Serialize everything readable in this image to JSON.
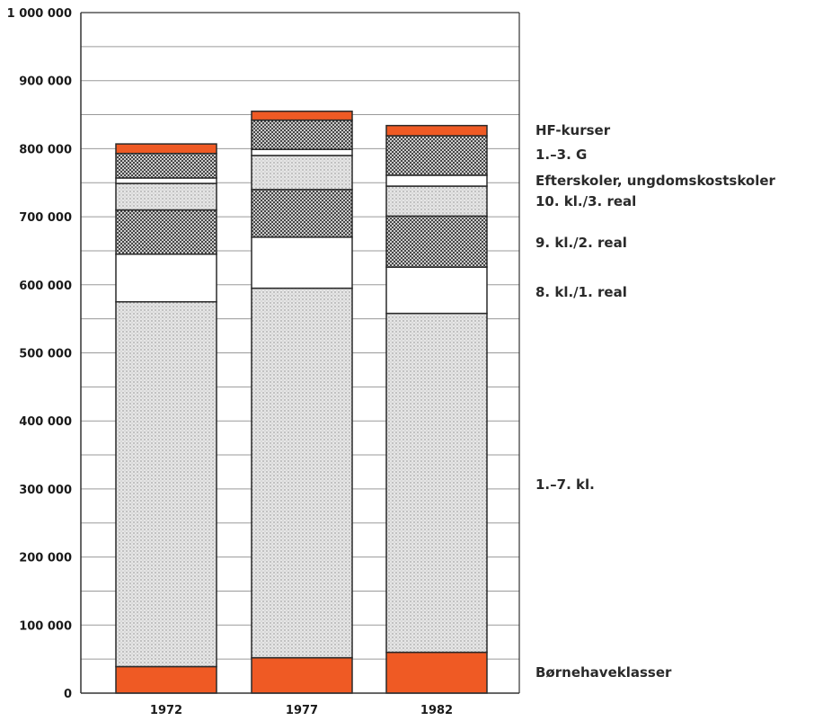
{
  "chart_data": {
    "type": "bar",
    "stacked": true,
    "categories": [
      "1972",
      "1977",
      "1982"
    ],
    "ylim": [
      0,
      1000000
    ],
    "yticks": [
      "0",
      "100 000",
      "200 000",
      "300 000",
      "400 000",
      "500 000",
      "600 000",
      "700 000",
      "800 000",
      "900 000",
      "1 000 000"
    ],
    "grid": true,
    "series": [
      {
        "name": "Børnehaveklasser",
        "values": [
          39000,
          52000,
          60000
        ],
        "color": "#ef5a24",
        "pattern": "solid"
      },
      {
        "name": "1.–7. kl.",
        "values": [
          536000,
          543000,
          498000
        ],
        "color": "#e4e4e4",
        "pattern": "fine-dots"
      },
      {
        "name": "8. kl./1. real",
        "values": [
          70000,
          75000,
          68000
        ],
        "color": "#ffffff",
        "pattern": "none"
      },
      {
        "name": "9. kl./2. real",
        "values": [
          65000,
          70000,
          75000
        ],
        "color": "#c8c8c8",
        "pattern": "dense-dots"
      },
      {
        "name": "10. kl./3. real",
        "values": [
          39000,
          50000,
          44000
        ],
        "color": "#e0e0e0",
        "pattern": "fine-dots"
      },
      {
        "name": "Efterskoler, ungdomskostskoler",
        "values": [
          8000,
          9000,
          16000
        ],
        "color": "#ffffff",
        "pattern": "none"
      },
      {
        "name": "1.–3. G",
        "values": [
          36000,
          43000,
          58000
        ],
        "color": "#c8c8c8",
        "pattern": "dense-dots"
      },
      {
        "name": "HF-kurser",
        "values": [
          14000,
          13000,
          15000
        ],
        "color": "#ef5a24",
        "pattern": "solid"
      }
    ]
  }
}
